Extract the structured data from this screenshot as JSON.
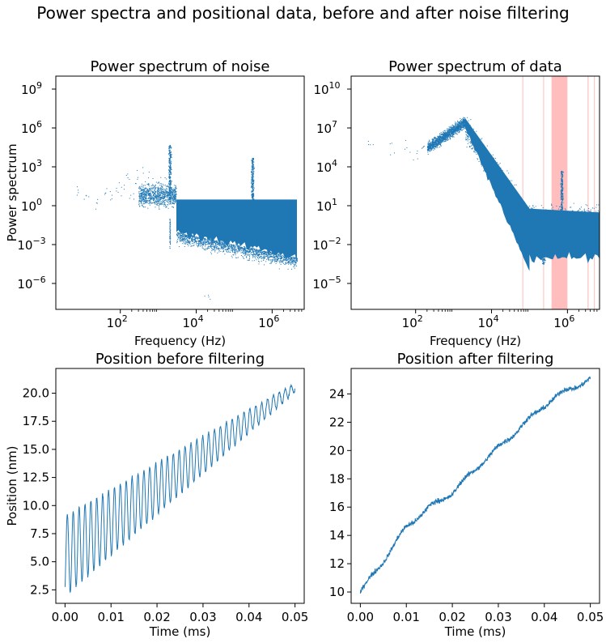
{
  "figure": {
    "suptitle": "Power spectra and positional data, before and after noise filtering"
  },
  "colors": {
    "series": "#1f77b4",
    "filter_band": "#ff9a9a"
  },
  "chart_data": [
    {
      "id": "noise-spectrum",
      "type": "scatter",
      "title": "Power spectrum of noise",
      "xlabel": "Frequency (Hz)",
      "ylabel": "Power spectrum",
      "xscale": "log",
      "yscale": "log",
      "xlim": [
        2,
        7000000
      ],
      "ylim": [
        1e-08,
        10000000000.0
      ],
      "xticks": [
        {
          "value": 100,
          "base": "10",
          "exp": "2"
        },
        {
          "value": 10000,
          "base": "10",
          "exp": "4"
        },
        {
          "value": 1000000,
          "base": "10",
          "exp": "6"
        }
      ],
      "yticks": [
        {
          "value": 1e-06,
          "base": "10",
          "exp": "−6"
        },
        {
          "value": 0.001,
          "base": "10",
          "exp": "−3"
        },
        {
          "value": 1,
          "base": "10",
          "exp": "0"
        },
        {
          "value": 1000,
          "base": "10",
          "exp": "3"
        },
        {
          "value": 1000000.0,
          "base": "10",
          "exp": "6"
        },
        {
          "value": 1000000000.0,
          "base": "10",
          "exp": "9"
        }
      ],
      "grid": false,
      "bands": [],
      "features": {
        "floor_start_hz": 3000,
        "floor_end_hz": 4500000,
        "floor_top": 3,
        "floor_bottom_low_hz": 0.01,
        "floor_bottom_high_hz": 0.0001,
        "peaks": [
          {
            "x": 2000,
            "y": 50000
          },
          {
            "x": 300000,
            "y": 5000
          }
        ],
        "sparse_points": [
          {
            "x": 7,
            "y": 10
          },
          {
            "x": 12,
            "y": 5
          },
          {
            "x": 25,
            "y": 2
          },
          {
            "x": 40,
            "y": 8
          },
          {
            "x": 60,
            "y": 3
          },
          {
            "x": 80,
            "y": 30
          },
          {
            "x": 120,
            "y": 20
          },
          {
            "x": 150,
            "y": 200
          },
          {
            "x": 200,
            "y": 5
          },
          {
            "x": 250,
            "y": 60
          },
          {
            "x": 350,
            "y": 300
          },
          {
            "x": 450,
            "y": 10
          },
          {
            "x": 600,
            "y": 100
          },
          {
            "x": 800,
            "y": 20
          },
          {
            "x": 1000,
            "y": 40
          },
          {
            "x": 1300,
            "y": 8
          },
          {
            "x": 1600,
            "y": 70
          },
          {
            "x": 20000,
            "y": 1e-07
          }
        ]
      }
    },
    {
      "id": "data-spectrum",
      "type": "scatter",
      "title": "Power spectrum of data",
      "xlabel": "Frequency (Hz)",
      "ylabel": "",
      "xscale": "log",
      "yscale": "log",
      "xlim": [
        2,
        7000000
      ],
      "ylim": [
        1e-07,
        100000000000.0
      ],
      "xticks": [
        {
          "value": 100,
          "base": "10",
          "exp": "2"
        },
        {
          "value": 10000,
          "base": "10",
          "exp": "4"
        },
        {
          "value": 1000000,
          "base": "10",
          "exp": "6"
        }
      ],
      "yticks": [
        {
          "value": 1e-05,
          "base": "10",
          "exp": "−5"
        },
        {
          "value": 0.01,
          "base": "10",
          "exp": "−2"
        },
        {
          "value": 10,
          "base": "10",
          "exp": "1"
        },
        {
          "value": 10000,
          "base": "10",
          "exp": "4"
        },
        {
          "value": 10000000.0,
          "base": "10",
          "exp": "7"
        },
        {
          "value": 10000000000.0,
          "base": "10",
          "exp": "10"
        }
      ],
      "grid": false,
      "bands": [
        {
          "x0": 65000,
          "x1": 67000
        },
        {
          "x0": 230000,
          "x1": 240000
        },
        {
          "x0": 380000,
          "x1": 1000000
        },
        {
          "x0": 3400000,
          "x1": 3600000
        },
        {
          "x0": 5000000,
          "x1": 5200000
        }
      ],
      "features": {
        "knee_hz": 2000,
        "knee_power": 30000000,
        "low_start_hz": 200,
        "low_power": 300000,
        "floor_hz": 100000,
        "floor_top": 3,
        "floor_bottom": 0.001,
        "peaks": [
          {
            "x": 700000,
            "y": 5000
          },
          {
            "x": 230000,
            "y": 0.1
          }
        ],
        "sparse_points": [
          {
            "x": 6,
            "y": 800000
          },
          {
            "x": 25,
            "y": 200000
          },
          {
            "x": 60,
            "y": 500000
          },
          {
            "x": 100,
            "y": 100000
          },
          {
            "x": 150,
            "y": 300000
          }
        ]
      }
    },
    {
      "id": "position-before",
      "type": "line",
      "title": "Position before filtering",
      "xlabel": "Time (ms)",
      "ylabel": "Position (nm)",
      "xlim": [
        -0.002,
        0.052
      ],
      "ylim": [
        1.3,
        22.2
      ],
      "xticks": [
        "0.00",
        "0.01",
        "0.02",
        "0.03",
        "0.04",
        "0.05"
      ],
      "yticks": [
        "2.5",
        "5.0",
        "7.5",
        "10.0",
        "12.5",
        "15.0",
        "17.5",
        "20.0"
      ],
      "grid": false,
      "signal": {
        "t_start": 0,
        "t_end": 0.05,
        "trend_start": 5.5,
        "trend_end": 20.5,
        "oscillation_amplitude_start": 3.6,
        "oscillation_amplitude_end": 0.4,
        "oscillation_period_ms": 0.00128
      }
    },
    {
      "id": "position-after",
      "type": "line",
      "title": "Position after filtering",
      "xlabel": "Time (ms)",
      "ylabel": "",
      "xlim": [
        -0.002,
        0.052
      ],
      "ylim": [
        9.2,
        25.8
      ],
      "xticks": [
        "0.00",
        "0.01",
        "0.02",
        "0.03",
        "0.04",
        "0.05"
      ],
      "yticks": [
        "10",
        "12",
        "14",
        "16",
        "18",
        "20",
        "22",
        "24"
      ],
      "grid": false,
      "signal": {
        "t_start": 0,
        "t_end": 0.05,
        "points": [
          [
            0.0,
            10.0
          ],
          [
            0.005,
            12.2
          ],
          [
            0.01,
            14.6
          ],
          [
            0.015,
            16.0
          ],
          [
            0.02,
            17.0
          ],
          [
            0.025,
            18.7
          ],
          [
            0.03,
            20.2
          ],
          [
            0.035,
            21.7
          ],
          [
            0.04,
            23.2
          ],
          [
            0.045,
            24.3
          ],
          [
            0.05,
            25.0
          ]
        ]
      }
    }
  ]
}
